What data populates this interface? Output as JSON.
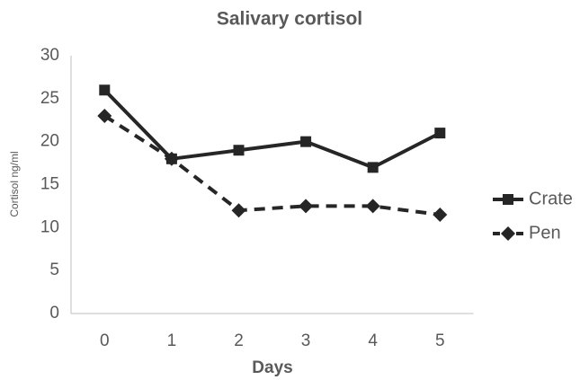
{
  "chart_data": {
    "type": "line",
    "title": "Salivary cortisol",
    "x_label": "Days",
    "y_label": "Cortisol ng/ml",
    "categories": [
      "0",
      "1",
      "2",
      "3",
      "4",
      "5"
    ],
    "series": [
      {
        "name": "Crate",
        "color": "#262626",
        "marker": "square",
        "dashed": false,
        "values": [
          26,
          18,
          19,
          20,
          17,
          21
        ]
      },
      {
        "name": "Pen",
        "color": "#262626",
        "marker": "diamond",
        "dashed": true,
        "values": [
          23,
          18,
          12,
          12.5,
          12.5,
          11.5
        ]
      }
    ],
    "ylim": [
      0,
      30
    ],
    "yticks": [
      0,
      5,
      10,
      15,
      20,
      25,
      30
    ],
    "grid": false,
    "legend": "right"
  }
}
